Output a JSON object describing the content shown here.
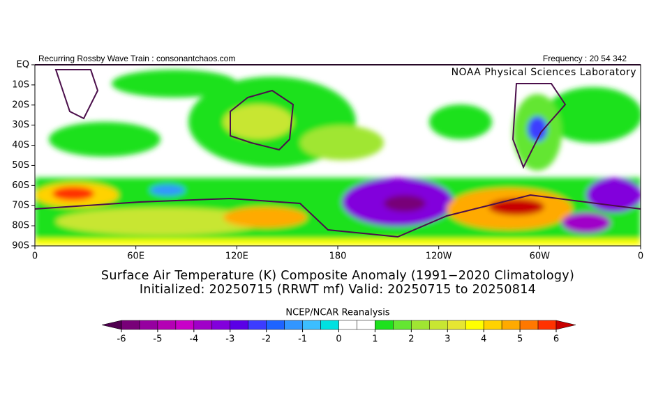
{
  "header": {
    "left": "Recurring Rossby Wave Train : consonantchaos.com",
    "right": "Frequency : 20 54 342",
    "lab": "NOAA Physical Sciences Laboratory"
  },
  "map": {
    "y_labels": [
      "EQ",
      "10S",
      "20S",
      "30S",
      "40S",
      "50S",
      "60S",
      "70S",
      "80S",
      "90S"
    ],
    "x_labels": [
      "0",
      "60E",
      "120E",
      "180",
      "120W",
      "60W",
      "0"
    ]
  },
  "title": [
    "Surface Air Temperature (K) Composite Anomaly (1991−2020 Climatology)",
    "Initialized: 20250715 (RRWT mf) Valid: 20250715 to 20250814"
  ],
  "colorbar": {
    "title": "NCEP/NCAR Reanalysis",
    "ticks": [
      -6,
      -5,
      -4,
      -3,
      -2,
      -1,
      0,
      1,
      2,
      3,
      4,
      5,
      6
    ],
    "under_color": "#500050",
    "over_color": "#c80000",
    "colors": [
      "#780078",
      "#9600a0",
      "#b400b4",
      "#c800c8",
      "#a000c8",
      "#8200dc",
      "#5a00e6",
      "#3c3cff",
      "#1e64ff",
      "#3296ff",
      "#3cbeff",
      "#00e1e1",
      "#ffffff",
      "#ffffff",
      "#1ee11e",
      "#64e632",
      "#a0e632",
      "#c8e632",
      "#e6e632",
      "#ffff00",
      "#ffd200",
      "#ffaa00",
      "#ff7800",
      "#ff3200"
    ]
  }
}
